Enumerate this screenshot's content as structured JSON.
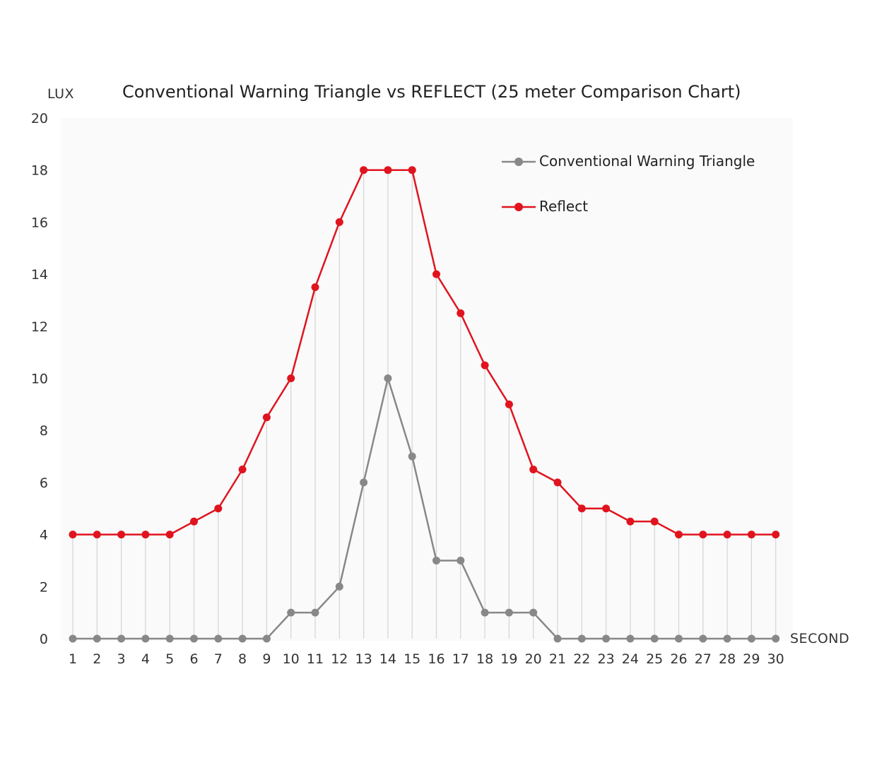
{
  "chart_data": {
    "type": "line",
    "title": "Conventional Warning Triangle vs REFLECT  (25 meter Comparison Chart)",
    "ylabel": "LUX",
    "xlabel": "SECOND",
    "ylim": [
      0,
      20
    ],
    "y_ticks": [
      "0",
      "2",
      "4",
      "6",
      "8",
      "10",
      "12",
      "14",
      "16",
      "18",
      "20"
    ],
    "categories": [
      "1",
      "2",
      "3",
      "4",
      "5",
      "6",
      "7",
      "8",
      "9",
      "10",
      "11",
      "12",
      "13",
      "14",
      "15",
      "16",
      "17",
      "18",
      "19",
      "20",
      "21",
      "22",
      "23",
      "24",
      "25",
      "26",
      "27",
      "28",
      "29",
      "30"
    ],
    "grid": "vertical drop lines at each x",
    "legend_position": "top-right",
    "series": [
      {
        "name": "Conventional Warning Triangle",
        "color": "#888888",
        "values": [
          0,
          0,
          0,
          0,
          0,
          0,
          0,
          0,
          0,
          1,
          1,
          2,
          6,
          10,
          7,
          3,
          3,
          1,
          1,
          1,
          0,
          0,
          0,
          0,
          0,
          0,
          0,
          0,
          0,
          0
        ]
      },
      {
        "name": "Reflect",
        "color": "#e0141e",
        "values": [
          4,
          4,
          4,
          4,
          4,
          4.5,
          5,
          6.5,
          8.5,
          10,
          13.5,
          16,
          18,
          18,
          18,
          14,
          12.5,
          10.5,
          9,
          6.5,
          6,
          5,
          5,
          4.5,
          4.5,
          4,
          4,
          4,
          4,
          4
        ]
      }
    ]
  }
}
